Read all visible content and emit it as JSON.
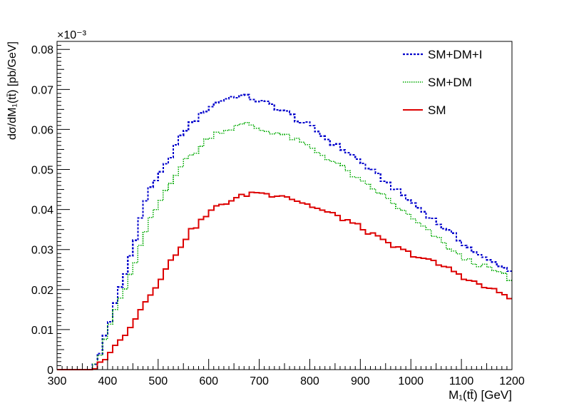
{
  "chart_data": {
    "type": "line",
    "style": "step-histogram",
    "title": "",
    "xlabel": "M₁(tt̄) [GeV]",
    "ylabel": "dσ/dM₁(tt̄) [pb/GeV]",
    "xlim": [
      300,
      1200
    ],
    "ylim": [
      0,
      0.082
    ],
    "y_scale_label": "×10⁻³",
    "bin_width": 10,
    "xticks": [
      300,
      400,
      500,
      600,
      700,
      800,
      900,
      1000,
      1100,
      1200
    ],
    "yticks": [
      0,
      0.01,
      0.02,
      0.03,
      0.04,
      0.05,
      0.06,
      0.07,
      0.08
    ],
    "ytick_labels": [
      "0",
      "0.01",
      "0.02",
      "0.03",
      "0.04",
      "0.05",
      "0.06",
      "0.07",
      "0.08"
    ],
    "legend_position": "top-right",
    "grid": false,
    "series": [
      {
        "name": "SM+DM+I",
        "color": "#0000cc",
        "dash": "dotted-dense",
        "anchors": [
          [
            300,
            0
          ],
          [
            365,
            0
          ],
          [
            380,
            0.002
          ],
          [
            390,
            0.006
          ],
          [
            400,
            0.011
          ],
          [
            410,
            0.014
          ],
          [
            420,
            0.019
          ],
          [
            430,
            0.022
          ],
          [
            440,
            0.026
          ],
          [
            450,
            0.03
          ],
          [
            460,
            0.035
          ],
          [
            470,
            0.041
          ],
          [
            480,
            0.044
          ],
          [
            490,
            0.046
          ],
          [
            500,
            0.048
          ],
          [
            510,
            0.05
          ],
          [
            520,
            0.052
          ],
          [
            530,
            0.055
          ],
          [
            540,
            0.057
          ],
          [
            550,
            0.059
          ],
          [
            560,
            0.061
          ],
          [
            580,
            0.063
          ],
          [
            600,
            0.0655
          ],
          [
            620,
            0.067
          ],
          [
            640,
            0.068
          ],
          [
            660,
            0.0685
          ],
          [
            680,
            0.068
          ],
          [
            700,
            0.067
          ],
          [
            720,
            0.0665
          ],
          [
            740,
            0.065
          ],
          [
            760,
            0.064
          ],
          [
            780,
            0.062
          ],
          [
            800,
            0.061
          ],
          [
            820,
            0.059
          ],
          [
            840,
            0.057
          ],
          [
            860,
            0.0555
          ],
          [
            880,
            0.054
          ],
          [
            900,
            0.052
          ],
          [
            920,
            0.05
          ],
          [
            940,
            0.048
          ],
          [
            960,
            0.046
          ],
          [
            980,
            0.044
          ],
          [
            1000,
            0.042
          ],
          [
            1020,
            0.04
          ],
          [
            1040,
            0.038
          ],
          [
            1060,
            0.036
          ],
          [
            1080,
            0.034
          ],
          [
            1100,
            0.032
          ],
          [
            1120,
            0.03
          ],
          [
            1140,
            0.028
          ],
          [
            1160,
            0.027
          ],
          [
            1180,
            0.026
          ],
          [
            1200,
            0.024
          ]
        ]
      },
      {
        "name": "SM+DM",
        "color": "#00aa00",
        "dash": "dotted-fine",
        "anchors": [
          [
            300,
            0
          ],
          [
            365,
            0
          ],
          [
            380,
            0.002
          ],
          [
            390,
            0.005
          ],
          [
            400,
            0.01
          ],
          [
            410,
            0.013
          ],
          [
            420,
            0.016
          ],
          [
            430,
            0.019
          ],
          [
            440,
            0.022
          ],
          [
            450,
            0.025
          ],
          [
            460,
            0.028
          ],
          [
            470,
            0.033
          ],
          [
            480,
            0.036
          ],
          [
            490,
            0.039
          ],
          [
            500,
            0.041
          ],
          [
            520,
            0.046
          ],
          [
            540,
            0.05
          ],
          [
            560,
            0.053
          ],
          [
            580,
            0.055
          ],
          [
            600,
            0.058
          ],
          [
            620,
            0.0595
          ],
          [
            640,
            0.06
          ],
          [
            660,
            0.061
          ],
          [
            680,
            0.0615
          ],
          [
            700,
            0.06
          ],
          [
            720,
            0.0595
          ],
          [
            740,
            0.059
          ],
          [
            760,
            0.058
          ],
          [
            780,
            0.057
          ],
          [
            800,
            0.0555
          ],
          [
            820,
            0.054
          ],
          [
            840,
            0.0525
          ],
          [
            860,
            0.051
          ],
          [
            880,
            0.049
          ],
          [
            900,
            0.047
          ],
          [
            920,
            0.0455
          ],
          [
            940,
            0.044
          ],
          [
            960,
            0.042
          ],
          [
            980,
            0.04
          ],
          [
            1000,
            0.038
          ],
          [
            1020,
            0.036
          ],
          [
            1040,
            0.034
          ],
          [
            1060,
            0.032
          ],
          [
            1080,
            0.03
          ],
          [
            1100,
            0.028
          ],
          [
            1120,
            0.027
          ],
          [
            1140,
            0.026
          ],
          [
            1160,
            0.025
          ],
          [
            1180,
            0.024
          ],
          [
            1200,
            0.022
          ]
        ]
      },
      {
        "name": "SM",
        "color": "#dd0000",
        "dash": "solid",
        "anchors": [
          [
            300,
            0
          ],
          [
            365,
            0
          ],
          [
            380,
            0.001
          ],
          [
            390,
            0.002
          ],
          [
            400,
            0.004
          ],
          [
            410,
            0.005
          ],
          [
            420,
            0.0065
          ],
          [
            430,
            0.008
          ],
          [
            440,
            0.01
          ],
          [
            450,
            0.012
          ],
          [
            460,
            0.014
          ],
          [
            470,
            0.016
          ],
          [
            480,
            0.018
          ],
          [
            490,
            0.02
          ],
          [
            500,
            0.022
          ],
          [
            510,
            0.024
          ],
          [
            520,
            0.026
          ],
          [
            530,
            0.028
          ],
          [
            540,
            0.03
          ],
          [
            550,
            0.032
          ],
          [
            560,
            0.034
          ],
          [
            580,
            0.0365
          ],
          [
            600,
            0.039
          ],
          [
            620,
            0.041
          ],
          [
            640,
            0.042
          ],
          [
            660,
            0.043
          ],
          [
            680,
            0.044
          ],
          [
            700,
            0.0445
          ],
          [
            720,
            0.0435
          ],
          [
            740,
            0.044
          ],
          [
            760,
            0.043
          ],
          [
            780,
            0.042
          ],
          [
            800,
            0.041
          ],
          [
            820,
            0.04
          ],
          [
            840,
            0.039
          ],
          [
            860,
            0.038
          ],
          [
            880,
            0.037
          ],
          [
            900,
            0.0355
          ],
          [
            920,
            0.034
          ],
          [
            940,
            0.0325
          ],
          [
            960,
            0.031
          ],
          [
            980,
            0.03
          ],
          [
            1000,
            0.029
          ],
          [
            1020,
            0.028
          ],
          [
            1040,
            0.027
          ],
          [
            1060,
            0.026
          ],
          [
            1080,
            0.025
          ],
          [
            1100,
            0.0235
          ],
          [
            1120,
            0.022
          ],
          [
            1140,
            0.021
          ],
          [
            1160,
            0.02
          ],
          [
            1180,
            0.019
          ],
          [
            1200,
            0.018
          ]
        ]
      }
    ]
  }
}
